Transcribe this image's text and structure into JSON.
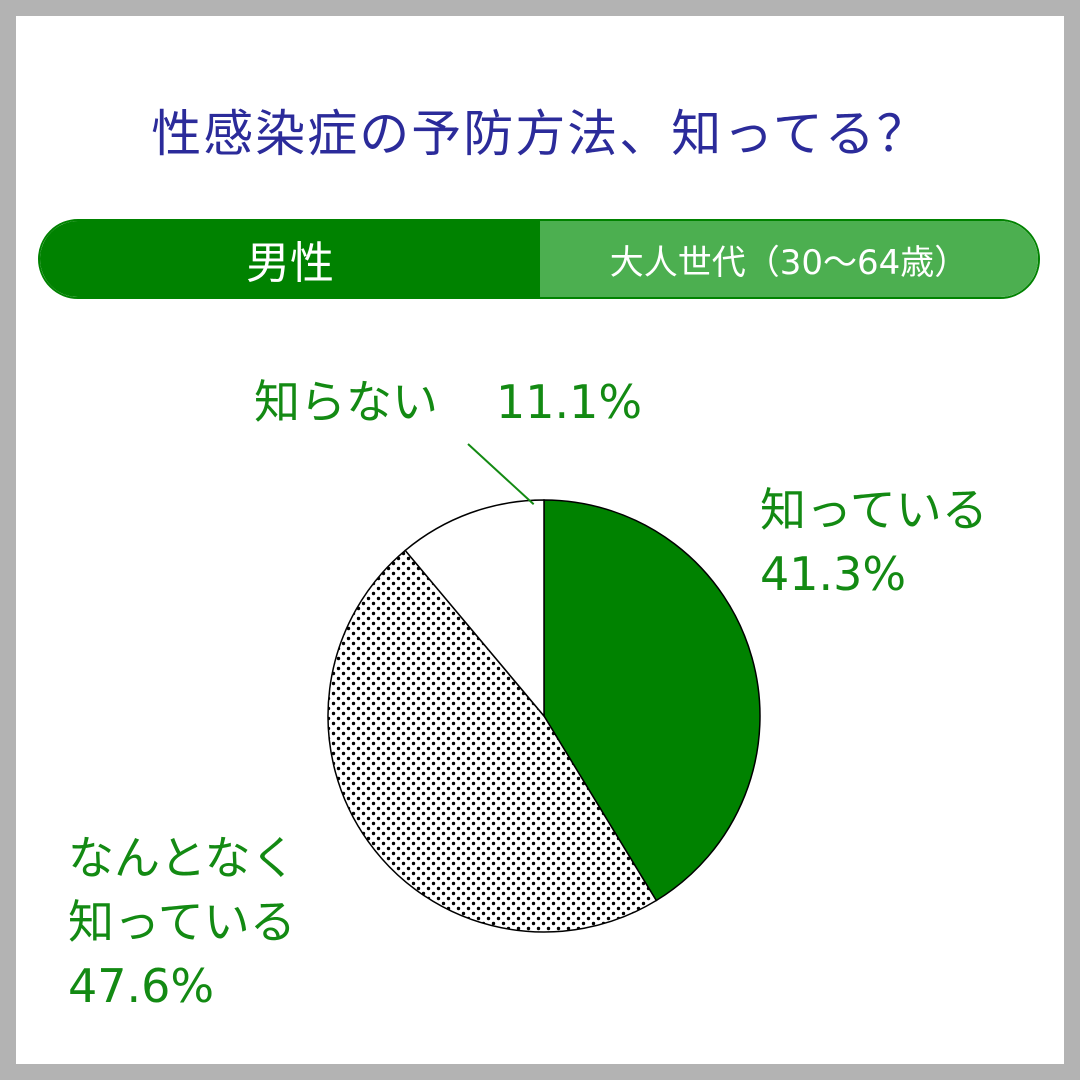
{
  "header": {
    "title": "性感染症の予防方法、知ってる？"
  },
  "banner": {
    "segment": "男性",
    "age_group": "大人世代（30～64歳）"
  },
  "colors": {
    "title": "#2b2b9a",
    "label": "#138a13",
    "green_dark": "#008200",
    "green_light": "#4caf50"
  },
  "chart_data": {
    "type": "pie",
    "slices": [
      {
        "label": "知っている",
        "value": 41.3,
        "value_text": "41.3%",
        "fill": "solid-green"
      },
      {
        "label": "なんとなく知っている",
        "value": 47.6,
        "value_text": "47.6%",
        "fill": "dotted"
      },
      {
        "label": "知らない",
        "value": 11.1,
        "value_text": "11.1%",
        "fill": "white"
      }
    ],
    "start": "12 o'clock",
    "direction": "clockwise"
  },
  "labels": {
    "know_line1": "知っている",
    "know_value": "41.3%",
    "somewhat_line1": "なんとなく",
    "somewhat_line2": "知っている",
    "somewhat_value": "47.6%",
    "dont_know": "知らない",
    "dont_know_value": "11.1%"
  }
}
